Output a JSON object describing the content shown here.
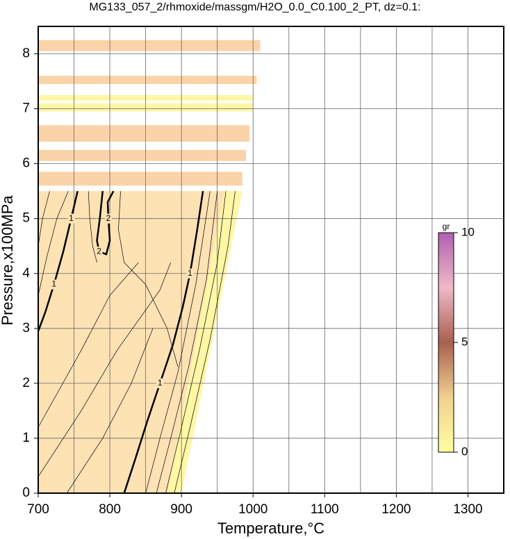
{
  "chart_data": {
    "type": "contour",
    "title": "MG133_057_2/rhmoxide/massgm/H2O_0.0_C0.100_2_PT, dz=0.1:",
    "xlabel": "Temperature,°C",
    "ylabel": "Pressure,x100MPa",
    "xlim": [
      700,
      1350
    ],
    "ylim": [
      0,
      8.5
    ],
    "xticks": [
      700,
      800,
      900,
      1000,
      1100,
      1200,
      1300
    ],
    "xminor": [
      750,
      850,
      950,
      1050,
      1150,
      1250,
      1350
    ],
    "yticks": [
      0,
      1,
      2,
      3,
      4,
      5,
      6,
      7,
      8
    ],
    "grid": true,
    "regions": [
      {
        "color": "#fde2b4",
        "x": [
          700,
          900,
          985,
          700
        ],
        "y": [
          0,
          0,
          5.5,
          5.5
        ]
      },
      {
        "color": "#fff7a6",
        "x": [
          880,
          900,
          985,
          960
        ],
        "y": [
          0,
          0,
          5.5,
          5.5
        ]
      },
      {
        "color": "#fbd3a8",
        "x": [
          700,
          985,
          985,
          700
        ],
        "y": [
          5.6,
          5.6,
          5.85,
          5.85
        ]
      },
      {
        "color": "#fbd3a8",
        "x": [
          700,
          990,
          990,
          700
        ],
        "y": [
          6.05,
          6.05,
          6.25,
          6.25
        ]
      },
      {
        "color": "#fbd3a8",
        "x": [
          700,
          995,
          995,
          700
        ],
        "y": [
          6.4,
          6.4,
          6.7,
          6.7
        ]
      },
      {
        "color": "#fff7a6",
        "x": [
          700,
          1000,
          1000,
          700
        ],
        "y": [
          6.95,
          6.95,
          7.1,
          7.1
        ]
      },
      {
        "color": "#fff7a6",
        "x": [
          700,
          1000,
          1000,
          700
        ],
        "y": [
          7.15,
          7.15,
          7.25,
          7.25
        ]
      },
      {
        "color": "#fbd3a8",
        "x": [
          700,
          1005,
          1005,
          700
        ],
        "y": [
          7.45,
          7.45,
          7.6,
          7.6
        ]
      },
      {
        "color": "#fbd3a8",
        "x": [
          700,
          1010,
          1010,
          700
        ],
        "y": [
          8.05,
          8.05,
          8.25,
          8.25
        ]
      }
    ],
    "contours": [
      {
        "level": 1,
        "x": [
          700,
          710,
          722,
          735,
          746,
          755
        ],
        "y": [
          2.95,
          3.3,
          3.8,
          4.4,
          5.0,
          5.5
        ]
      },
      {
        "level": 1,
        "x": [
          820,
          835,
          852,
          870,
          888,
          902,
          912,
          922,
          930
        ],
        "y": [
          0,
          0.6,
          1.3,
          2.0,
          2.7,
          3.4,
          4.0,
          4.8,
          5.5
        ]
      },
      {
        "level": 2,
        "x": [
          790,
          786,
          782,
          785,
          795,
          800,
          798,
          797,
          805
        ],
        "y": [
          5.5,
          5.0,
          4.6,
          4.4,
          4.35,
          4.6,
          5.0,
          5.3,
          5.5
        ]
      }
    ],
    "thin_contours": [
      {
        "x": [
          700,
          760,
          800,
          840
        ],
        "y": [
          1.2,
          2.6,
          3.6,
          4.2
        ]
      },
      {
        "x": [
          700,
          760,
          810,
          870,
          885
        ],
        "y": [
          0.3,
          1.5,
          2.6,
          3.7,
          4.2
        ]
      },
      {
        "x": [
          740,
          790,
          830,
          860
        ],
        "y": [
          0,
          1.0,
          2.0,
          3.0
        ]
      },
      {
        "x": [
          850,
          870,
          895,
          920,
          940
        ],
        "y": [
          0,
          1.0,
          2.2,
          3.8,
          5.5
        ]
      },
      {
        "x": [
          865,
          885,
          910,
          935,
          950
        ],
        "y": [
          0,
          1.0,
          2.3,
          3.9,
          5.5
        ]
      },
      {
        "x": [
          878,
          900,
          925,
          950,
          962
        ],
        "y": [
          0,
          1.2,
          2.6,
          4.2,
          5.5
        ]
      },
      {
        "x": [
          890,
          912,
          940,
          965,
          975
        ],
        "y": [
          0,
          1.2,
          2.8,
          4.5,
          5.5
        ]
      },
      {
        "x": [
          700,
          712,
          726,
          742
        ],
        "y": [
          3.6,
          4.3,
          5.0,
          5.5
        ]
      },
      {
        "x": [
          700,
          706,
          716
        ],
        "y": [
          4.5,
          5.0,
          5.5
        ]
      },
      {
        "x": [
          770,
          772,
          776,
          782
        ],
        "y": [
          5.5,
          5.0,
          4.5,
          4.2
        ]
      },
      {
        "x": [
          815,
          812,
          820,
          850,
          880,
          895
        ],
        "y": [
          5.5,
          4.8,
          4.2,
          3.8,
          3.0,
          2.3
        ]
      }
    ],
    "colorbar": {
      "label": "gr",
      "lim": [
        0,
        10
      ],
      "ticks": [
        0,
        5,
        10
      ]
    }
  }
}
